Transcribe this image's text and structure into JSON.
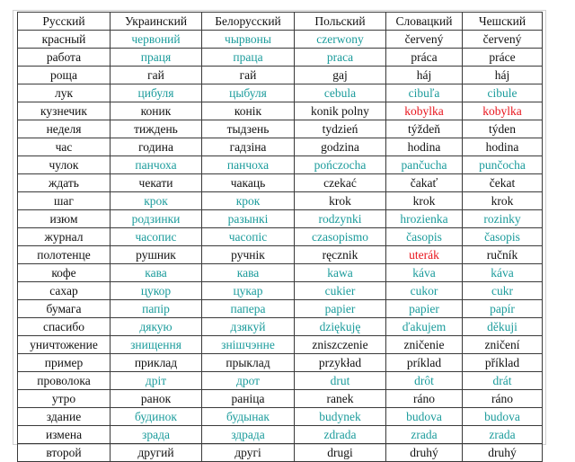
{
  "headers": [
    "Русский",
    "Украинский",
    "Белорусский",
    "Польский",
    "Словацкий",
    "Чешский"
  ],
  "colors": {
    "teal": "#1a9b9b",
    "red": "#e8141c",
    "black": "#111111"
  },
  "rows": [
    {
      "cells": [
        "красный",
        "червоний",
        "чырвоны",
        "czerwony",
        "červený",
        "červený"
      ],
      "styles": [
        "black",
        "teal",
        "teal",
        "teal",
        "black",
        "black"
      ]
    },
    {
      "cells": [
        "работа",
        "праця",
        "праца",
        "praca",
        "práca",
        "práce"
      ],
      "styles": [
        "black",
        "teal",
        "teal",
        "teal",
        "black",
        "black"
      ]
    },
    {
      "cells": [
        "роща",
        "гай",
        "гай",
        "gaj",
        "háj",
        "háj"
      ],
      "styles": [
        "black",
        "black",
        "black",
        "black",
        "black",
        "black"
      ]
    },
    {
      "cells": [
        "лук",
        "цибуля",
        "цыбуля",
        "cebula",
        "cibuľa",
        "cibule"
      ],
      "styles": [
        "black",
        "teal",
        "teal",
        "teal",
        "teal",
        "teal"
      ]
    },
    {
      "cells": [
        "кузнечик",
        "коник",
        "конік",
        "konik polny",
        "kobylka",
        "kobylka"
      ],
      "styles": [
        "black",
        "black",
        "black",
        "black",
        "red",
        "red"
      ]
    },
    {
      "cells": [
        "неделя",
        "тиждень",
        "тыдзень",
        "tydzień",
        "týždeň",
        "týden"
      ],
      "styles": [
        "black",
        "black",
        "black",
        "black",
        "black",
        "black"
      ]
    },
    {
      "cells": [
        "час",
        "година",
        "гадзіна",
        "godzina",
        "hodina",
        "hodina"
      ],
      "styles": [
        "black",
        "black",
        "black",
        "black",
        "black",
        "black"
      ]
    },
    {
      "cells": [
        "чулок",
        "панчоха",
        "панчоха",
        "pończocha",
        "pančucha",
        "punčocha"
      ],
      "styles": [
        "black",
        "teal",
        "teal",
        "teal",
        "teal",
        "teal"
      ]
    },
    {
      "cells": [
        "ждать",
        "чекати",
        "чакаць",
        "czekać",
        "čakať",
        "čekat"
      ],
      "styles": [
        "black",
        "black",
        "black",
        "black",
        "black",
        "black"
      ]
    },
    {
      "cells": [
        "шаг",
        "крок",
        "крок",
        "krok",
        "krok",
        "krok"
      ],
      "styles": [
        "black",
        "teal",
        "teal",
        "black",
        "black",
        "black"
      ]
    },
    {
      "cells": [
        "изюм",
        "родзинки",
        "разынкі",
        "rodzynki",
        "hrozienka",
        "rozinky"
      ],
      "styles": [
        "black",
        "teal",
        "teal",
        "teal",
        "teal",
        "teal"
      ]
    },
    {
      "cells": [
        "журнал",
        "часопис",
        "часопіс",
        "czasopismo",
        "časopis",
        "časopis"
      ],
      "styles": [
        "black",
        "teal",
        "teal",
        "teal",
        "teal",
        "teal"
      ]
    },
    {
      "cells": [
        "полотенце",
        "рушник",
        "ручнік",
        "ręcznik",
        "uterák",
        "ručník"
      ],
      "styles": [
        "black",
        "black",
        "black",
        "black",
        "red",
        "black"
      ]
    },
    {
      "cells": [
        "кофе",
        "кава",
        "кава",
        "kawa",
        "káva",
        "káva"
      ],
      "styles": [
        "black",
        "teal",
        "teal",
        "teal",
        "teal",
        "teal"
      ]
    },
    {
      "cells": [
        "сахар",
        "цукор",
        "цукар",
        "cukier",
        "cukor",
        "cukr"
      ],
      "styles": [
        "black",
        "teal",
        "teal",
        "teal",
        "teal",
        "teal"
      ]
    },
    {
      "cells": [
        "бумага",
        "папір",
        "папера",
        "papier",
        "papier",
        "papír"
      ],
      "styles": [
        "black",
        "teal",
        "teal",
        "teal",
        "teal",
        "teal"
      ]
    },
    {
      "cells": [
        "спасибо",
        "дякую",
        "дзякуй",
        "dziękuję",
        "ďakujem",
        "děkuji"
      ],
      "styles": [
        "black",
        "teal",
        "teal",
        "teal",
        "teal",
        "teal"
      ]
    },
    {
      "cells": [
        "уничтожение",
        "знищення",
        "знішчэнне",
        "zniszczenie",
        "zničenie",
        "zničení"
      ],
      "styles": [
        "black",
        "teal",
        "teal",
        "black",
        "black",
        "black"
      ]
    },
    {
      "cells": [
        "пример",
        "приклад",
        "прыклад",
        "przykład",
        "príklad",
        "příklad"
      ],
      "styles": [
        "black",
        "black",
        "black",
        "black",
        "black",
        "black"
      ]
    },
    {
      "cells": [
        "проволока",
        "дріт",
        "дрот",
        "drut",
        "drôt",
        "drát"
      ],
      "styles": [
        "black",
        "teal",
        "teal",
        "teal",
        "teal",
        "teal"
      ]
    },
    {
      "cells": [
        "утро",
        "ранок",
        "раніца",
        "ranek",
        "ráno",
        "ráno"
      ],
      "styles": [
        "black",
        "black",
        "black",
        "black",
        "black",
        "black"
      ]
    },
    {
      "cells": [
        "здание",
        "будинок",
        "будынак",
        "budynek",
        "budova",
        "budova"
      ],
      "styles": [
        "black",
        "teal",
        "teal",
        "teal",
        "teal",
        "teal"
      ]
    },
    {
      "cells": [
        "измена",
        "зрада",
        "здрада",
        "zdrada",
        "zrada",
        "zrada"
      ],
      "styles": [
        "black",
        "teal",
        "teal",
        "teal",
        "teal",
        "teal"
      ]
    },
    {
      "cells": [
        "второй",
        "другий",
        "другі",
        "drugi",
        "druhý",
        "druhý"
      ],
      "styles": [
        "black",
        "black",
        "black",
        "black",
        "black",
        "black"
      ]
    }
  ]
}
